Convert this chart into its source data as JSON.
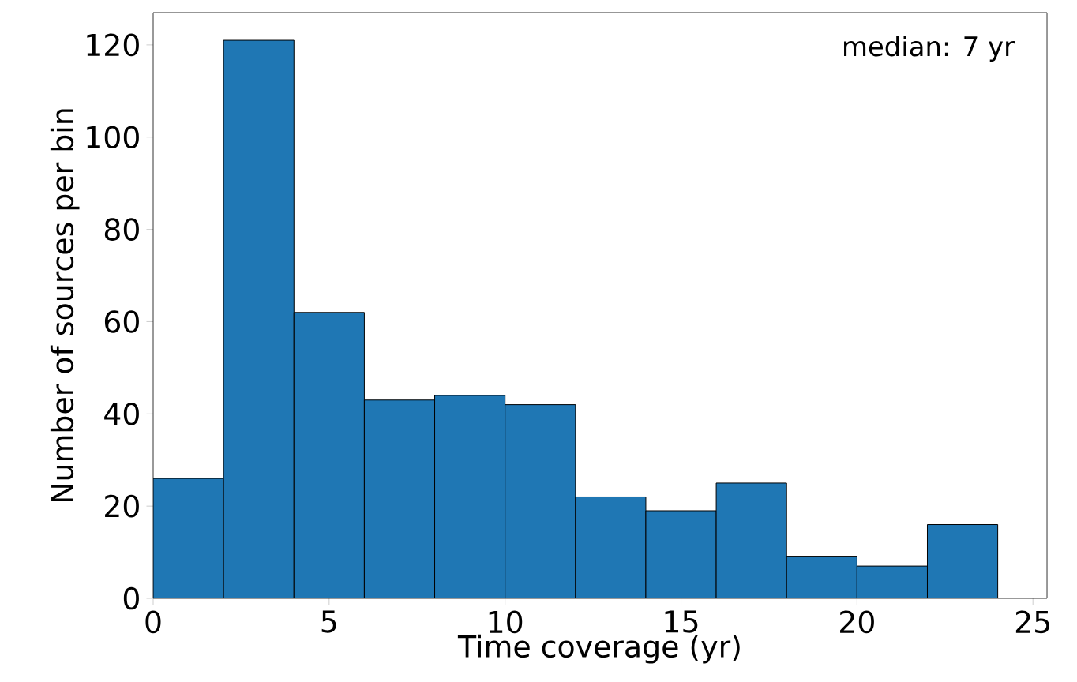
{
  "chart_data": {
    "type": "histogram",
    "xlabel": "Time coverage (yr)",
    "ylabel": "Number of sources per bin",
    "bins": [
      0,
      2,
      4,
      6,
      8,
      10,
      12,
      14,
      16,
      18,
      20,
      22,
      24
    ],
    "values": [
      26,
      121,
      62,
      43,
      44,
      42,
      22,
      19,
      25,
      9,
      7,
      16
    ],
    "color": "#1f77b4",
    "xlim": [
      0,
      25.4
    ],
    "ylim": [
      0,
      127
    ],
    "xticks": [
      0,
      5,
      10,
      15,
      20,
      25
    ],
    "yticks": [
      0,
      20,
      40,
      60,
      80,
      100,
      120
    ],
    "annotations": [
      "median: 7 yr"
    ],
    "grid": false
  }
}
